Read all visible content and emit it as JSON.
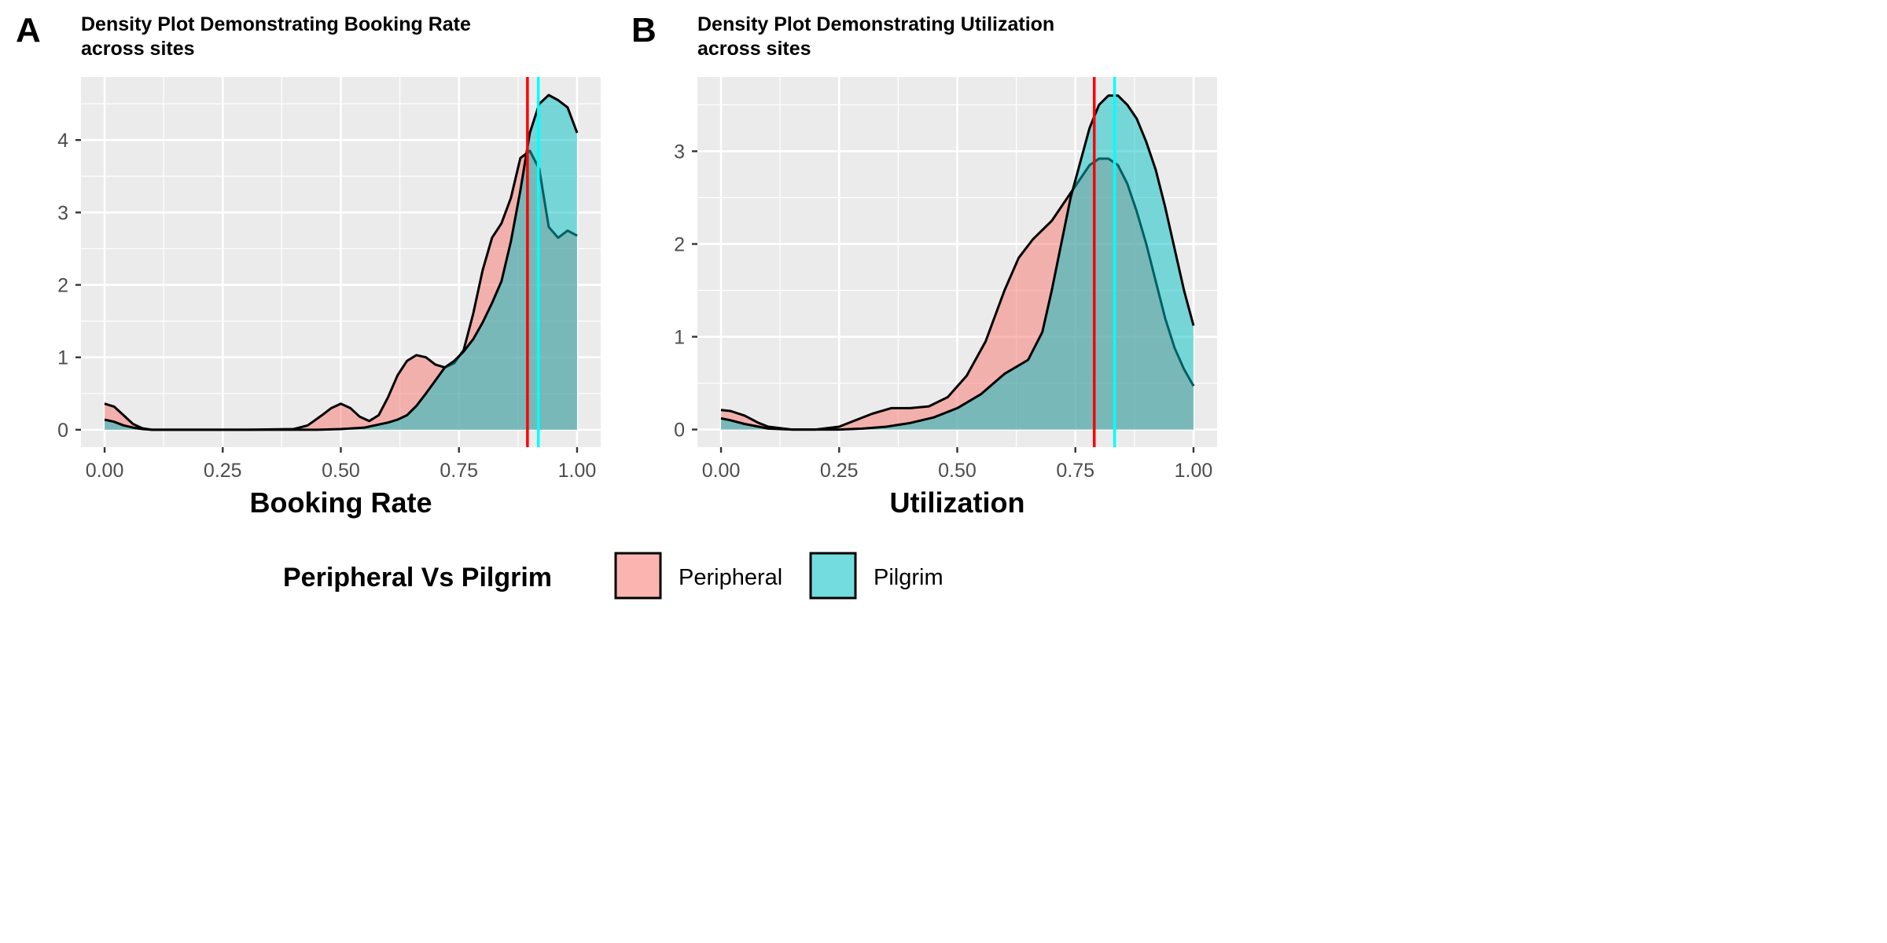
{
  "colors": {
    "peripheral": "#f8766d",
    "pilgrim": "#00bfc4",
    "mean_peripheral": "#ff0000",
    "mean_pilgrim": "#00ffff",
    "panel_bg": "#ebebeb",
    "grid": "#ffffff"
  },
  "legend": {
    "title": "Peripheral Vs Pilgrim",
    "placement": "bottom",
    "items": [
      {
        "label": "Peripheral",
        "color": "#f8766d"
      },
      {
        "label": "Pilgrim",
        "color": "#00bfc4"
      }
    ]
  },
  "chart_data": [
    {
      "panel_label": "A",
      "type": "area",
      "title_lines": [
        "Density Plot Demonstrating Booking Rate",
        "across sites"
      ],
      "xlabel": "Booking Rate",
      "ylabel": "",
      "xlim": [
        -0.05,
        1.05
      ],
      "ylim": [
        -0.24,
        4.87
      ],
      "x_ticks": [
        0,
        0.25,
        0.5,
        0.75,
        1
      ],
      "x_tick_labels": [
        "0.00",
        "0.25",
        "0.50",
        "0.75",
        "1.00"
      ],
      "y_ticks": [
        0,
        1,
        2,
        3,
        4
      ],
      "y_tick_labels": [
        "0",
        "1",
        "2",
        "3",
        "4"
      ],
      "grid": true,
      "mean_lines": {
        "Peripheral": 0.895,
        "Pilgrim": 0.918
      },
      "series": [
        {
          "name": "Peripheral",
          "x": [
            0,
            0.02,
            0.04,
            0.06,
            0.08,
            0.1,
            0.15,
            0.2,
            0.3,
            0.4,
            0.43,
            0.46,
            0.48,
            0.5,
            0.52,
            0.54,
            0.56,
            0.58,
            0.6,
            0.62,
            0.64,
            0.66,
            0.68,
            0.7,
            0.72,
            0.74,
            0.76,
            0.78,
            0.8,
            0.82,
            0.84,
            0.86,
            0.88,
            0.9,
            0.92,
            0.94,
            0.96,
            0.98,
            1.0
          ],
          "values": [
            0.36,
            0.32,
            0.2,
            0.08,
            0.02,
            0.0,
            0.0,
            0.0,
            0.0,
            0.01,
            0.06,
            0.2,
            0.3,
            0.36,
            0.3,
            0.18,
            0.12,
            0.2,
            0.45,
            0.75,
            0.95,
            1.03,
            1.0,
            0.9,
            0.86,
            0.92,
            1.1,
            1.6,
            2.2,
            2.65,
            2.85,
            3.2,
            3.75,
            3.85,
            3.6,
            2.8,
            2.65,
            2.75,
            2.68
          ]
        },
        {
          "name": "Pilgrim",
          "x": [
            0,
            0.02,
            0.04,
            0.06,
            0.08,
            0.1,
            0.15,
            0.2,
            0.3,
            0.4,
            0.45,
            0.5,
            0.55,
            0.6,
            0.62,
            0.64,
            0.66,
            0.68,
            0.7,
            0.72,
            0.74,
            0.76,
            0.78,
            0.8,
            0.82,
            0.84,
            0.86,
            0.88,
            0.9,
            0.92,
            0.94,
            0.96,
            0.98,
            1.0
          ],
          "values": [
            0.14,
            0.11,
            0.06,
            0.03,
            0.01,
            0.0,
            0.0,
            0.0,
            0.0,
            0.0,
            0.0,
            0.01,
            0.03,
            0.1,
            0.14,
            0.2,
            0.33,
            0.5,
            0.68,
            0.86,
            0.95,
            1.08,
            1.25,
            1.48,
            1.75,
            2.05,
            2.6,
            3.3,
            4.1,
            4.5,
            4.62,
            4.55,
            4.45,
            4.1
          ]
        }
      ]
    },
    {
      "panel_label": "B",
      "type": "area",
      "title_lines": [
        "Density Plot Demonstrating Utilization",
        "across sites"
      ],
      "xlabel": "Utilization",
      "ylabel": "",
      "xlim": [
        -0.05,
        1.05
      ],
      "ylim": [
        -0.19,
        3.8
      ],
      "x_ticks": [
        0,
        0.25,
        0.5,
        0.75,
        1
      ],
      "x_tick_labels": [
        "0.00",
        "0.25",
        "0.50",
        "0.75",
        "1.00"
      ],
      "y_ticks": [
        0,
        1,
        2,
        3
      ],
      "y_tick_labels": [
        "0",
        "1",
        "2",
        "3"
      ],
      "grid": true,
      "mean_lines": {
        "Peripheral": 0.79,
        "Pilgrim": 0.833
      },
      "series": [
        {
          "name": "Peripheral",
          "x": [
            0,
            0.02,
            0.05,
            0.08,
            0.1,
            0.15,
            0.2,
            0.25,
            0.28,
            0.32,
            0.36,
            0.4,
            0.44,
            0.48,
            0.52,
            0.56,
            0.6,
            0.63,
            0.66,
            0.7,
            0.74,
            0.78,
            0.8,
            0.82,
            0.84,
            0.86,
            0.88,
            0.9,
            0.92,
            0.94,
            0.96,
            0.98,
            1.0
          ],
          "values": [
            0.21,
            0.2,
            0.15,
            0.07,
            0.03,
            0.0,
            0.0,
            0.03,
            0.09,
            0.17,
            0.23,
            0.23,
            0.25,
            0.35,
            0.58,
            0.95,
            1.5,
            1.85,
            2.05,
            2.25,
            2.55,
            2.85,
            2.92,
            2.92,
            2.85,
            2.65,
            2.35,
            2.0,
            1.6,
            1.2,
            0.88,
            0.65,
            0.47
          ]
        },
        {
          "name": "Pilgrim",
          "x": [
            0,
            0.02,
            0.05,
            0.08,
            0.1,
            0.15,
            0.2,
            0.25,
            0.3,
            0.35,
            0.4,
            0.45,
            0.5,
            0.55,
            0.6,
            0.65,
            0.68,
            0.7,
            0.74,
            0.78,
            0.8,
            0.82,
            0.84,
            0.86,
            0.88,
            0.9,
            0.92,
            0.94,
            0.96,
            0.98,
            1.0
          ],
          "values": [
            0.12,
            0.1,
            0.06,
            0.03,
            0.01,
            0.0,
            0.0,
            0.0,
            0.01,
            0.03,
            0.07,
            0.13,
            0.23,
            0.38,
            0.6,
            0.75,
            1.05,
            1.5,
            2.5,
            3.25,
            3.5,
            3.6,
            3.6,
            3.5,
            3.35,
            3.1,
            2.8,
            2.4,
            1.95,
            1.5,
            1.12
          ]
        }
      ]
    }
  ]
}
